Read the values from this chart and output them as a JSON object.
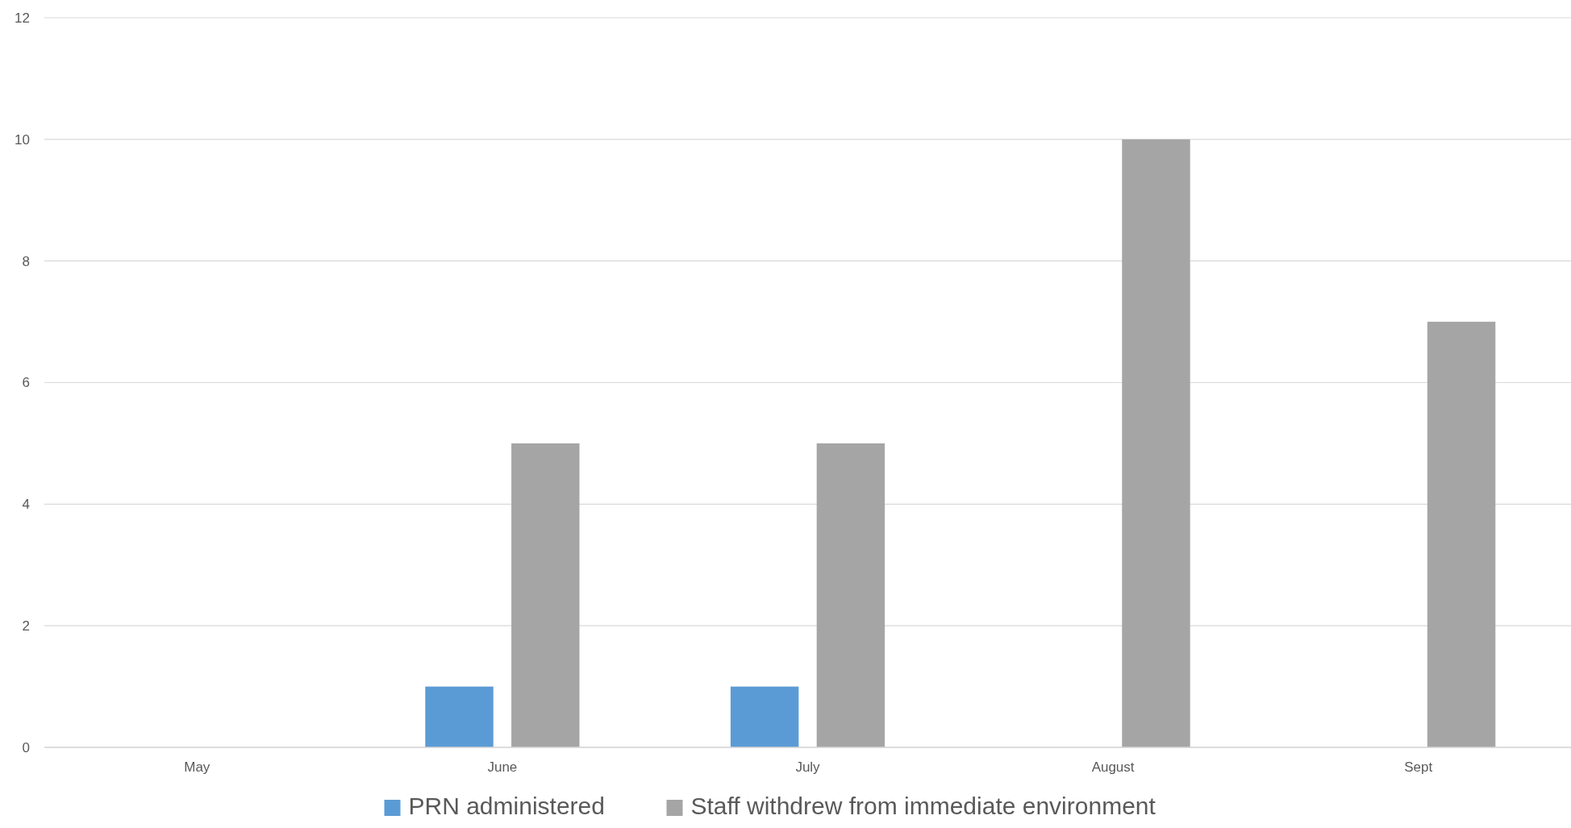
{
  "chart_data": {
    "type": "bar",
    "categories": [
      "May",
      "June",
      "July",
      "August",
      "Sept"
    ],
    "series": [
      {
        "name": "PRN administered",
        "color": "#5b9bd5",
        "values": [
          0,
          1,
          1,
          0,
          0
        ]
      },
      {
        "name": "Staff withdrew from immediate environment",
        "color": "#a5a5a5",
        "values": [
          0,
          5,
          5,
          10,
          7
        ]
      }
    ],
    "ylim": [
      0,
      12
    ],
    "yticks": [
      0,
      2,
      4,
      6,
      8,
      10,
      12
    ],
    "grid": "y",
    "legend": "bottom"
  }
}
